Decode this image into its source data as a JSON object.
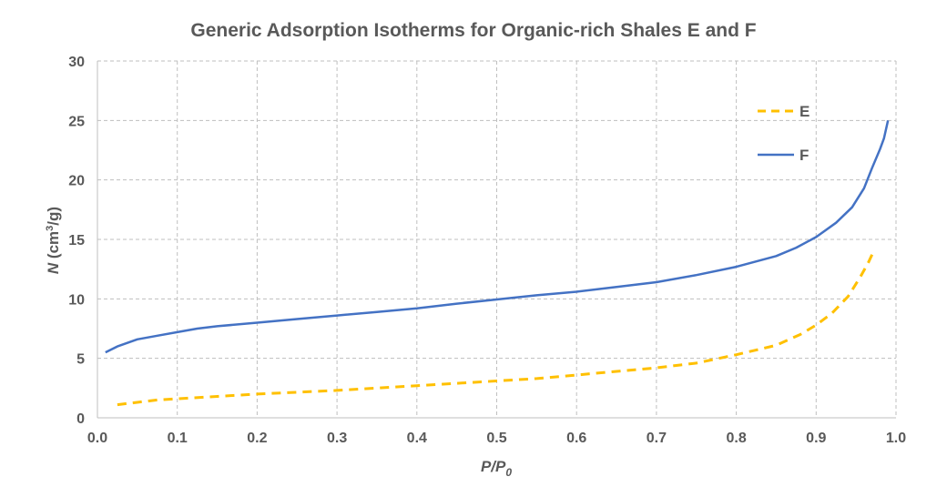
{
  "chart_data": {
    "type": "line",
    "title": "Generic Adsorption Isotherms for Organic-rich Shales E and F",
    "xlabel": "P/P0",
    "xlabel_main": "P/P",
    "xlabel_sub": "0",
    "ylabel_italic": "N",
    "ylabel_unit_pre": " (cm",
    "ylabel_unit_sup": "3",
    "ylabel_unit_post": "/g)",
    "xlim": [
      0.0,
      1.0
    ],
    "ylim": [
      0,
      30
    ],
    "x_ticks": [
      "0.0",
      "0.1",
      "0.2",
      "0.3",
      "0.4",
      "0.5",
      "0.6",
      "0.7",
      "0.8",
      "0.9",
      "1.0"
    ],
    "y_ticks": [
      "0",
      "5",
      "10",
      "15",
      "20",
      "25",
      "30"
    ],
    "grid": true,
    "legend_position": "top-right",
    "series": [
      {
        "name": "E",
        "color": "#FFC000",
        "line_style": "dashed",
        "points": [
          [
            0.025,
            1.1
          ],
          [
            0.05,
            1.3
          ],
          [
            0.075,
            1.5
          ],
          [
            0.1,
            1.6
          ],
          [
            0.15,
            1.8
          ],
          [
            0.2,
            2.0
          ],
          [
            0.25,
            2.15
          ],
          [
            0.3,
            2.3
          ],
          [
            0.35,
            2.5
          ],
          [
            0.4,
            2.7
          ],
          [
            0.45,
            2.9
          ],
          [
            0.5,
            3.1
          ],
          [
            0.55,
            3.3
          ],
          [
            0.6,
            3.6
          ],
          [
            0.65,
            3.9
          ],
          [
            0.7,
            4.2
          ],
          [
            0.75,
            4.6
          ],
          [
            0.8,
            5.3
          ],
          [
            0.85,
            6.1
          ],
          [
            0.88,
            7.0
          ],
          [
            0.9,
            7.8
          ],
          [
            0.92,
            8.8
          ],
          [
            0.94,
            10.2
          ],
          [
            0.955,
            11.8
          ],
          [
            0.965,
            13.0
          ],
          [
            0.972,
            14.0
          ]
        ]
      },
      {
        "name": "F",
        "color": "#4472C4",
        "line_style": "solid",
        "points": [
          [
            0.01,
            5.5
          ],
          [
            0.025,
            6.0
          ],
          [
            0.05,
            6.6
          ],
          [
            0.075,
            6.9
          ],
          [
            0.1,
            7.2
          ],
          [
            0.125,
            7.5
          ],
          [
            0.15,
            7.7
          ],
          [
            0.2,
            8.0
          ],
          [
            0.25,
            8.3
          ],
          [
            0.3,
            8.6
          ],
          [
            0.35,
            8.9
          ],
          [
            0.4,
            9.2
          ],
          [
            0.45,
            9.6
          ],
          [
            0.5,
            9.95
          ],
          [
            0.55,
            10.3
          ],
          [
            0.6,
            10.6
          ],
          [
            0.65,
            11.0
          ],
          [
            0.7,
            11.4
          ],
          [
            0.75,
            12.0
          ],
          [
            0.8,
            12.7
          ],
          [
            0.85,
            13.6
          ],
          [
            0.875,
            14.3
          ],
          [
            0.9,
            15.2
          ],
          [
            0.925,
            16.4
          ],
          [
            0.945,
            17.7
          ],
          [
            0.96,
            19.3
          ],
          [
            0.97,
            21.0
          ],
          [
            0.98,
            22.6
          ],
          [
            0.985,
            23.5
          ],
          [
            0.99,
            25.0
          ]
        ]
      }
    ]
  }
}
